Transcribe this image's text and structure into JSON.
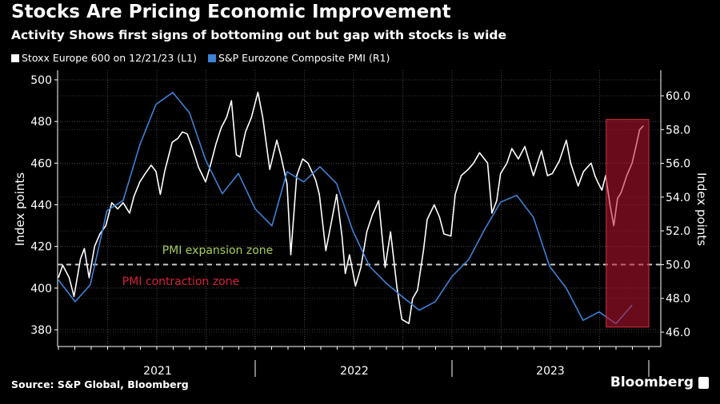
{
  "header": {
    "title": "Stocks Are Pricing Economic Improvement",
    "subtitle": "Activity Shows first signs of bottoming out but gap with stocks is wide"
  },
  "footer": {
    "source": "Source: S&P Global, Bloomberg",
    "brand": "Bloomberg"
  },
  "colors": {
    "background": "#000000",
    "stoxx": "#ffffff",
    "pmi": "#3d82d6",
    "highlight": "#c0142f",
    "expansion_text": "#a6cf5a",
    "contraction_text": "#d8203a",
    "threshold": "#cccccc"
  },
  "chart_data": {
    "type": "line",
    "title": "Stocks Are Pricing Economic Improvement",
    "subtitle": "Activity Shows first signs of bottoming out but gap with stocks is wide",
    "xlabel": "",
    "x_tick_labels": [
      "2021",
      "2022",
      "2023"
    ],
    "xlim": [
      "2020-12-31",
      "2023-12-31"
    ],
    "ylabel_left": "Index points",
    "ylabel_right": "Index points",
    "ylim_left": [
      375,
      503
    ],
    "ylim_right": [
      45.5,
      61.2
    ],
    "yticks_left": [
      "380",
      "400",
      "420",
      "440",
      "460",
      "480",
      "500"
    ],
    "yticks_right": [
      "46.0",
      "48.0",
      "50.0",
      "52.0",
      "54.0",
      "56.0",
      "58.0",
      "60.0"
    ],
    "grid": true,
    "legend_position": "top-left",
    "series": [
      {
        "name": "Stoxx Europe 600 on 12/21/23 (L1)",
        "axis": "left",
        "color": "#ffffff",
        "points": [
          [
            "2020-12-31",
            405
          ],
          [
            "2021-01-08",
            411
          ],
          [
            "2021-01-20",
            405
          ],
          [
            "2021-01-29",
            396
          ],
          [
            "2021-02-10",
            414
          ],
          [
            "2021-02-17",
            419
          ],
          [
            "2021-02-26",
            405
          ],
          [
            "2021-03-08",
            420
          ],
          [
            "2021-03-18",
            426
          ],
          [
            "2021-03-29",
            430
          ],
          [
            "2021-04-09",
            441
          ],
          [
            "2021-04-20",
            438
          ],
          [
            "2021-04-30",
            441
          ],
          [
            "2021-05-12",
            436
          ],
          [
            "2021-05-20",
            444
          ],
          [
            "2021-05-31",
            451
          ],
          [
            "2021-06-10",
            455
          ],
          [
            "2021-06-21",
            459
          ],
          [
            "2021-06-30",
            456
          ],
          [
            "2021-07-08",
            445
          ],
          [
            "2021-07-16",
            456
          ],
          [
            "2021-07-23",
            463
          ],
          [
            "2021-07-30",
            470
          ],
          [
            "2021-08-10",
            472
          ],
          [
            "2021-08-18",
            475
          ],
          [
            "2021-08-27",
            474
          ],
          [
            "2021-09-06",
            467
          ],
          [
            "2021-09-17",
            458
          ],
          [
            "2021-09-30",
            451
          ],
          [
            "2021-10-08",
            458
          ],
          [
            "2021-10-19",
            469
          ],
          [
            "2021-10-29",
            477
          ],
          [
            "2021-11-08",
            482
          ],
          [
            "2021-11-17",
            490
          ],
          [
            "2021-11-26",
            464
          ],
          [
            "2021-12-03",
            463
          ],
          [
            "2021-12-13",
            475
          ],
          [
            "2021-12-24",
            482
          ],
          [
            "2022-01-05",
            494
          ],
          [
            "2022-01-14",
            482
          ],
          [
            "2022-01-27",
            457
          ],
          [
            "2022-02-09",
            471
          ],
          [
            "2022-02-17",
            463
          ],
          [
            "2022-02-28",
            450
          ],
          [
            "2022-03-07",
            416
          ],
          [
            "2022-03-18",
            454
          ],
          [
            "2022-03-29",
            462
          ],
          [
            "2022-04-08",
            460
          ],
          [
            "2022-04-22",
            452
          ],
          [
            "2022-04-29",
            445
          ],
          [
            "2022-05-11",
            418
          ],
          [
            "2022-05-20",
            430
          ],
          [
            "2022-05-31",
            445
          ],
          [
            "2022-06-10",
            425
          ],
          [
            "2022-06-16",
            407
          ],
          [
            "2022-06-24",
            416
          ],
          [
            "2022-07-05",
            401
          ],
          [
            "2022-07-15",
            410
          ],
          [
            "2022-07-26",
            427
          ],
          [
            "2022-08-05",
            435
          ],
          [
            "2022-08-17",
            442
          ],
          [
            "2022-08-29",
            410
          ],
          [
            "2022-09-08",
            427
          ],
          [
            "2022-09-20",
            400
          ],
          [
            "2022-09-29",
            385
          ],
          [
            "2022-10-12",
            383
          ],
          [
            "2022-10-19",
            395
          ],
          [
            "2022-10-28",
            399
          ],
          [
            "2022-11-08",
            418
          ],
          [
            "2022-11-15",
            433
          ],
          [
            "2022-11-28",
            440
          ],
          [
            "2022-12-08",
            434
          ],
          [
            "2022-12-16",
            426
          ],
          [
            "2022-12-29",
            425
          ],
          [
            "2023-01-06",
            445
          ],
          [
            "2023-01-17",
            454
          ],
          [
            "2023-01-30",
            457
          ],
          [
            "2023-02-09",
            460
          ],
          [
            "2023-02-20",
            465
          ],
          [
            "2023-03-07",
            460
          ],
          [
            "2023-03-15",
            436
          ],
          [
            "2023-03-24",
            442
          ],
          [
            "2023-03-31",
            455
          ],
          [
            "2023-04-12",
            460
          ],
          [
            "2023-04-21",
            467
          ],
          [
            "2023-05-03",
            462
          ],
          [
            "2023-05-15",
            468
          ],
          [
            "2023-05-31",
            454
          ],
          [
            "2023-06-15",
            466
          ],
          [
            "2023-06-26",
            454
          ],
          [
            "2023-07-05",
            455
          ],
          [
            "2023-07-18",
            461
          ],
          [
            "2023-07-31",
            471
          ],
          [
            "2023-08-08",
            460
          ],
          [
            "2023-08-22",
            449
          ],
          [
            "2023-09-01",
            456
          ],
          [
            "2023-09-15",
            460
          ],
          [
            "2023-09-22",
            454
          ],
          [
            "2023-09-29",
            450
          ],
          [
            "2023-10-05",
            447
          ],
          [
            "2023-10-12",
            454
          ],
          [
            "2023-10-20",
            440
          ],
          [
            "2023-10-27",
            430
          ],
          [
            "2023-11-03",
            443
          ],
          [
            "2023-11-10",
            446
          ],
          [
            "2023-11-20",
            454
          ],
          [
            "2023-11-30",
            460
          ],
          [
            "2023-12-08",
            469
          ],
          [
            "2023-12-14",
            476
          ],
          [
            "2023-12-21",
            478
          ]
        ]
      },
      {
        "name": "S&P Eurozone Composite PMI (R1)",
        "axis": "right",
        "color": "#3d82d6",
        "points": [
          [
            "2020-12-31",
            49.1
          ],
          [
            "2021-01-31",
            47.8
          ],
          [
            "2021-02-28",
            48.8
          ],
          [
            "2021-03-31",
            53.2
          ],
          [
            "2021-04-30",
            53.8
          ],
          [
            "2021-05-31",
            57.1
          ],
          [
            "2021-06-30",
            59.5
          ],
          [
            "2021-07-31",
            60.2
          ],
          [
            "2021-08-31",
            59.0
          ],
          [
            "2021-09-30",
            56.2
          ],
          [
            "2021-10-31",
            54.2
          ],
          [
            "2021-11-30",
            55.4
          ],
          [
            "2021-12-31",
            53.3
          ],
          [
            "2022-01-31",
            52.3
          ],
          [
            "2022-02-28",
            55.5
          ],
          [
            "2022-03-31",
            54.9
          ],
          [
            "2022-04-30",
            55.8
          ],
          [
            "2022-05-31",
            54.8
          ],
          [
            "2022-06-30",
            52.0
          ],
          [
            "2022-07-31",
            49.9
          ],
          [
            "2022-08-31",
            48.9
          ],
          [
            "2022-09-30",
            48.1
          ],
          [
            "2022-10-31",
            47.3
          ],
          [
            "2022-11-30",
            47.8
          ],
          [
            "2022-12-31",
            49.3
          ],
          [
            "2023-01-31",
            50.3
          ],
          [
            "2023-02-28",
            52.0
          ],
          [
            "2023-03-31",
            53.7
          ],
          [
            "2023-04-30",
            54.1
          ],
          [
            "2023-05-31",
            52.8
          ],
          [
            "2023-06-30",
            49.9
          ],
          [
            "2023-07-31",
            48.6
          ],
          [
            "2023-08-31",
            46.7
          ],
          [
            "2023-09-30",
            47.2
          ],
          [
            "2023-10-31",
            46.5
          ],
          [
            "2023-11-30",
            47.6
          ]
        ]
      }
    ],
    "threshold": {
      "axis": "right",
      "value": 50.0,
      "style": "dashed"
    },
    "annotations": [
      {
        "text": "PMI expansion zone",
        "color": "#a6cf5a"
      },
      {
        "text": "PMI contraction zone",
        "color": "#d8203a"
      }
    ],
    "highlight": {
      "x_start": "2023-10-13",
      "x_end": "2023-12-31",
      "y_right_start": 46.3,
      "y_right_end": 58.6,
      "color": "#c0142f"
    }
  }
}
